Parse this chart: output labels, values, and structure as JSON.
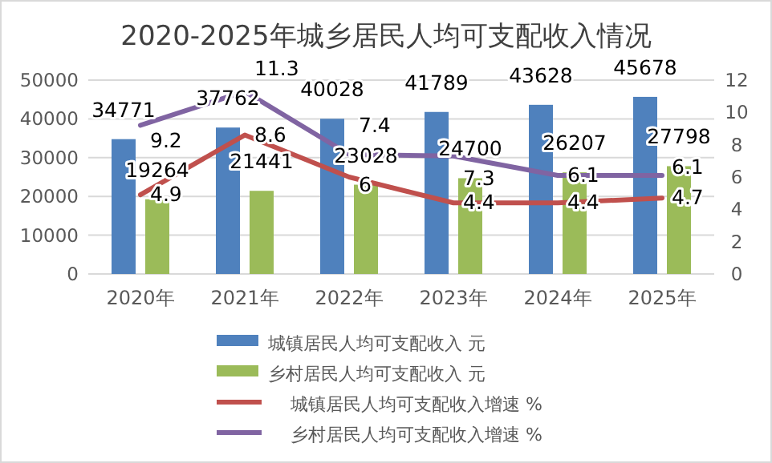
{
  "chart_data": {
    "type": "bar",
    "title": "2020-2025年城乡居民人均可支配收入情况",
    "categories": [
      "2020年",
      "2021年",
      "2022年",
      "2023年",
      "2024年",
      "2025年"
    ],
    "series": [
      {
        "name": "城镇居民人均可支配收入 元",
        "color": "#4f81bd",
        "values": [
          34771,
          37762,
          40028,
          41789,
          43628,
          45678
        ]
      },
      {
        "name": "乡村居民人均可支配收入 元",
        "color": "#9bbb59",
        "values": [
          19264,
          21441,
          23028,
          24700,
          26207,
          27798
        ]
      },
      {
        "name": "城镇居民人均可支配收入增速 %",
        "color": "#c0504d",
        "type": "line",
        "axis": "y2",
        "values": [
          4.9,
          8.6,
          6,
          4.4,
          4.4,
          4.7
        ]
      },
      {
        "name": "乡村居民人均可支配收入增速 %",
        "color": "#8064a2",
        "type": "line",
        "axis": "y2",
        "values": [
          9.2,
          11.3,
          7.4,
          7.3,
          6.1,
          6.1
        ]
      }
    ],
    "ylim": [
      0,
      50000
    ],
    "yticks": [
      0,
      10000,
      20000,
      30000,
      40000,
      50000
    ],
    "y2lim": [
      0,
      12
    ],
    "y2ticks": [
      0,
      2,
      4,
      6,
      8,
      10,
      12
    ],
    "grid": "y",
    "legend": "bottom",
    "data_labels": true
  }
}
